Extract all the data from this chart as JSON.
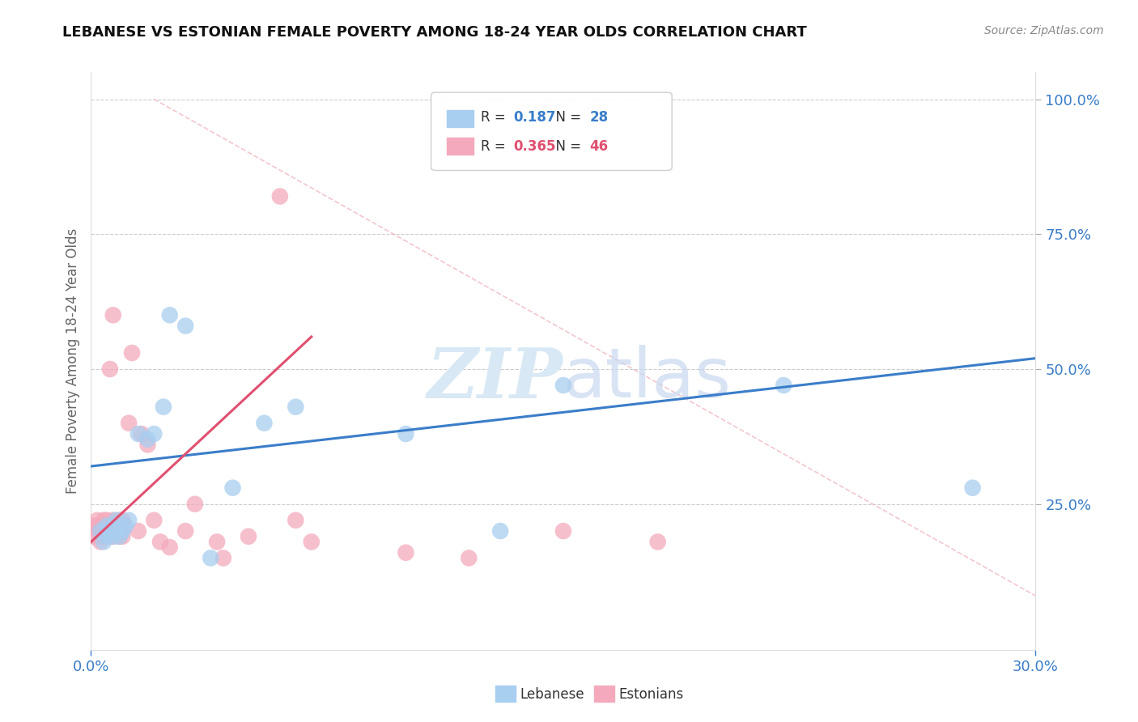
{
  "title": "LEBANESE VS ESTONIAN FEMALE POVERTY AMONG 18-24 YEAR OLDS CORRELATION CHART",
  "source": "Source: ZipAtlas.com",
  "xlim": [
    0.0,
    0.3
  ],
  "ylim": [
    -0.02,
    1.05
  ],
  "ylabel": "Female Poverty Among 18-24 Year Olds",
  "legend_blue_label": "Lebanese",
  "legend_pink_label": "Estonians",
  "R_blue": 0.187,
  "N_blue": 28,
  "R_pink": 0.365,
  "N_pink": 46,
  "blue_color": "#A8CEF0",
  "pink_color": "#F4AABC",
  "blue_line_color": "#3A7DC9",
  "pink_line_color": "#E05070",
  "diag_color": "#F0B8C0",
  "ytick_vals": [
    0.25,
    0.5,
    0.75,
    1.0
  ],
  "ytick_labels": [
    "25.0%",
    "50.0%",
    "75.0%",
    "100.0%"
  ],
  "blue_scatter_x": [
    0.003,
    0.004,
    0.005,
    0.005,
    0.006,
    0.007,
    0.007,
    0.008,
    0.008,
    0.009,
    0.01,
    0.011,
    0.012,
    0.015,
    0.018,
    0.02,
    0.023,
    0.025,
    0.03,
    0.038,
    0.045,
    0.055,
    0.065,
    0.1,
    0.13,
    0.15,
    0.22,
    0.28
  ],
  "blue_scatter_y": [
    0.2,
    0.18,
    0.19,
    0.21,
    0.2,
    0.19,
    0.21,
    0.2,
    0.22,
    0.19,
    0.2,
    0.21,
    0.22,
    0.38,
    0.37,
    0.38,
    0.43,
    0.6,
    0.58,
    0.15,
    0.28,
    0.4,
    0.43,
    0.38,
    0.2,
    0.47,
    0.47,
    0.28
  ],
  "pink_scatter_x": [
    0.001,
    0.001,
    0.002,
    0.002,
    0.003,
    0.003,
    0.004,
    0.004,
    0.004,
    0.005,
    0.005,
    0.005,
    0.006,
    0.006,
    0.006,
    0.007,
    0.007,
    0.007,
    0.008,
    0.008,
    0.009,
    0.009,
    0.01,
    0.01,
    0.01,
    0.01,
    0.012,
    0.013,
    0.015,
    0.016,
    0.018,
    0.02,
    0.022,
    0.025,
    0.03,
    0.033,
    0.04,
    0.042,
    0.05,
    0.06,
    0.065,
    0.07,
    0.1,
    0.12,
    0.15,
    0.18
  ],
  "pink_scatter_y": [
    0.19,
    0.21,
    0.2,
    0.22,
    0.18,
    0.21,
    0.19,
    0.2,
    0.22,
    0.19,
    0.2,
    0.22,
    0.19,
    0.21,
    0.5,
    0.19,
    0.22,
    0.6,
    0.2,
    0.21,
    0.19,
    0.22,
    0.2,
    0.19,
    0.21,
    0.22,
    0.4,
    0.53,
    0.2,
    0.38,
    0.36,
    0.22,
    0.18,
    0.17,
    0.2,
    0.25,
    0.18,
    0.15,
    0.19,
    0.82,
    0.22,
    0.18,
    0.16,
    0.15,
    0.2,
    0.18
  ],
  "blue_line_x0": 0.0,
  "blue_line_y0": 0.32,
  "blue_line_x1": 0.3,
  "blue_line_y1": 0.52,
  "pink_line_x0": 0.0,
  "pink_line_y0": 0.18,
  "pink_line_x1": 0.07,
  "pink_line_y1": 0.56,
  "diag_line_x0": 0.02,
  "diag_line_y0": 1.0,
  "diag_line_x1": 0.3,
  "diag_line_y1": 0.08
}
